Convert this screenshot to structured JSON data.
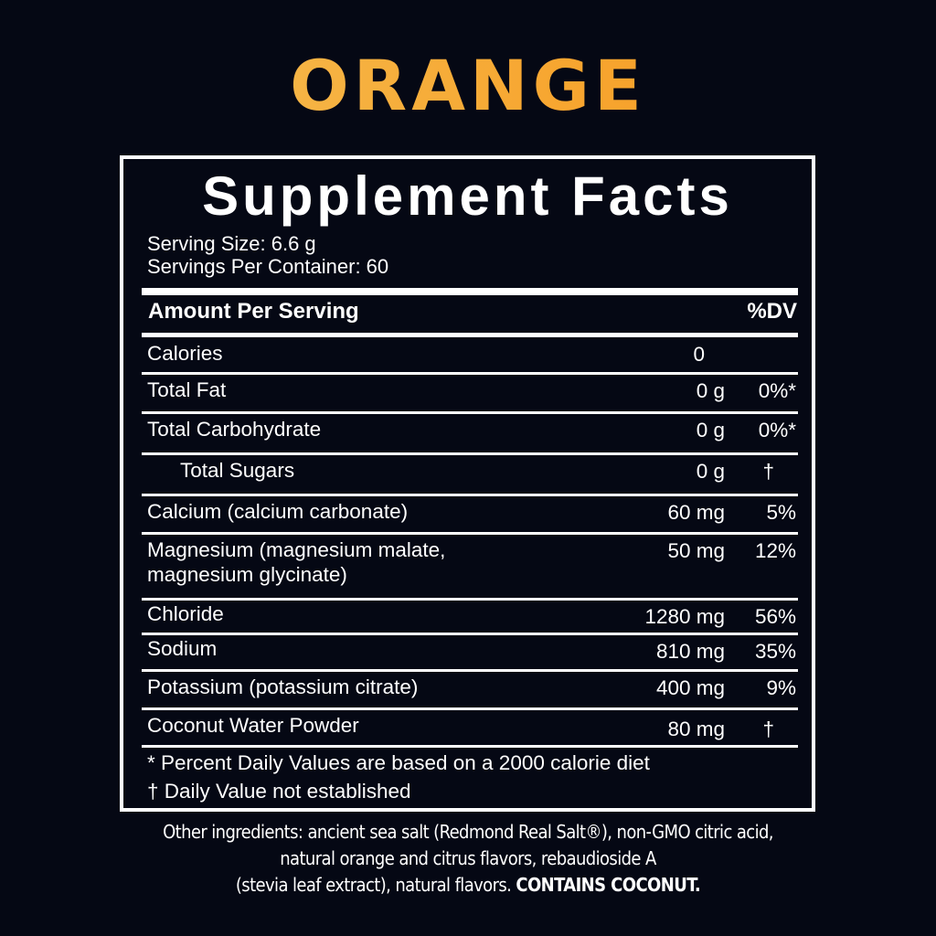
{
  "flavor": "ORANGE",
  "colors": {
    "background": "#050814",
    "flavor_gradient_start": "#f4c35a",
    "flavor_gradient_end": "#f6961e",
    "text": "#ffffff"
  },
  "panel": {
    "title": "Supplement Facts",
    "serving_size": "Serving Size: 6.6 g",
    "servings_per_container": "Servings Per Container: 60",
    "header": {
      "amount": "Amount Per Serving",
      "dv": "%DV"
    },
    "rows": [
      {
        "name": "Calories",
        "amount": "0",
        "dv": ""
      },
      {
        "name": "Total Fat",
        "amount": "0 g",
        "dv": "0%*"
      },
      {
        "name": "Total Carbohydrate",
        "amount": "0 g",
        "dv": "0%*"
      },
      {
        "name": "Total Sugars",
        "amount": "0 g",
        "dv": "†"
      },
      {
        "name": "Calcium (calcium carbonate)",
        "amount": "60 mg",
        "dv": "5%"
      },
      {
        "name": "Magnesium (magnesium malate,",
        "name2": "magnesium glycinate)",
        "amount": "50 mg",
        "dv": "12%"
      },
      {
        "name": "Chloride",
        "amount": "1280 mg",
        "dv": "56%"
      },
      {
        "name": "Sodium",
        "amount": "810 mg",
        "dv": "35%"
      },
      {
        "name": "Potassium (potassium citrate)",
        "amount": "400 mg",
        "dv": "9%"
      },
      {
        "name": "Coconut Water Powder",
        "amount": "80 mg",
        "dv": "†"
      }
    ],
    "footnotes": [
      "* Percent Daily Values are based on a 2000 calorie diet",
      "† Daily Value not established"
    ]
  },
  "other_ingredients": {
    "line1": "Other ingredients: ancient sea salt (Redmond Real Salt®), non-GMO citric acid,",
    "line2": "natural orange and citrus flavors, rebaudioside A",
    "line3": "(stevia leaf extract), natural flavors.",
    "allergen": "CONTAINS COCONUT."
  }
}
